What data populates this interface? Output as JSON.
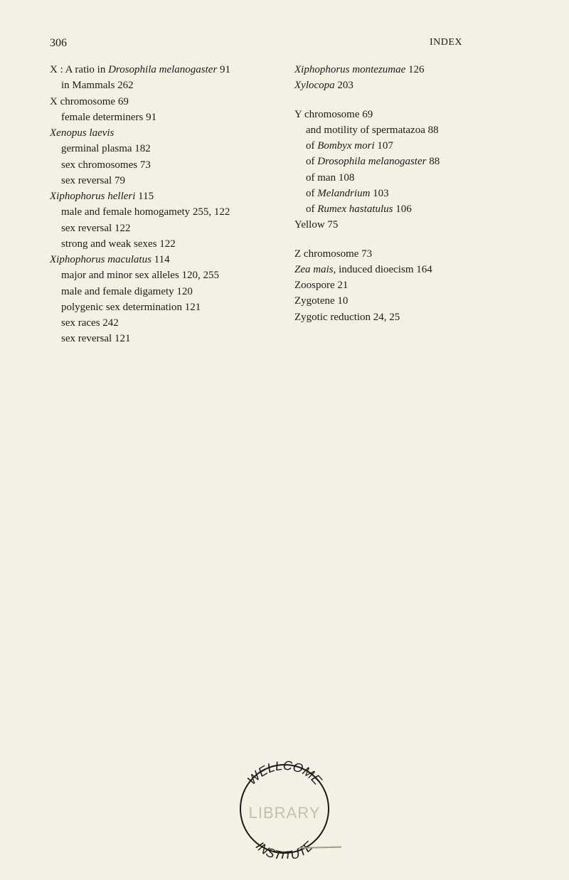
{
  "page_number": "306",
  "header_title": "INDEX",
  "left_column": [
    {
      "level": 0,
      "parts": [
        {
          "t": "X : A ratio in "
        },
        {
          "t": "Drosophila melanogaster",
          "i": true
        },
        {
          "t": "   91"
        }
      ]
    },
    {
      "level": 1,
      "parts": [
        {
          "t": "in Mammals   262"
        }
      ]
    },
    {
      "level": 0,
      "parts": [
        {
          "t": "X chromosome   69"
        }
      ]
    },
    {
      "level": 1,
      "parts": [
        {
          "t": "female determiners   91"
        }
      ]
    },
    {
      "level": 0,
      "parts": [
        {
          "t": "Xenopus laevis",
          "i": true
        }
      ]
    },
    {
      "level": 1,
      "parts": [
        {
          "t": "germinal plasma   182"
        }
      ]
    },
    {
      "level": 1,
      "parts": [
        {
          "t": "sex chromosomes   73"
        }
      ]
    },
    {
      "level": 1,
      "parts": [
        {
          "t": "sex reversal   79"
        }
      ]
    },
    {
      "level": 0,
      "parts": [
        {
          "t": "Xiphophorus helleri",
          "i": true
        },
        {
          "t": "   115"
        }
      ]
    },
    {
      "level": 1,
      "parts": [
        {
          "t": "male and female homogamety   255, 122"
        }
      ]
    },
    {
      "level": 1,
      "parts": [
        {
          "t": "sex reversal   122"
        }
      ]
    },
    {
      "level": 1,
      "parts": [
        {
          "t": "strong and weak sexes   122"
        }
      ]
    },
    {
      "level": 0,
      "parts": [
        {
          "t": "Xiphophorus maculatus",
          "i": true
        },
        {
          "t": "   114"
        }
      ]
    },
    {
      "level": 1,
      "parts": [
        {
          "t": "major and minor sex alleles   120, 255"
        }
      ]
    },
    {
      "level": 1,
      "parts": [
        {
          "t": "male and female digamety   120"
        }
      ]
    },
    {
      "level": 1,
      "parts": [
        {
          "t": "polygenic sex determination   121"
        }
      ]
    },
    {
      "level": 1,
      "parts": [
        {
          "t": "sex races   242"
        }
      ]
    },
    {
      "level": 1,
      "parts": [
        {
          "t": "sex reversal   121"
        }
      ]
    }
  ],
  "right_column": [
    {
      "level": 0,
      "parts": [
        {
          "t": "Xiphophorus montezumae",
          "i": true
        },
        {
          "t": "   126"
        }
      ]
    },
    {
      "level": 0,
      "parts": [
        {
          "t": "Xylocopa",
          "i": true
        },
        {
          "t": "   203"
        }
      ]
    },
    {
      "level": 0,
      "gap": true,
      "parts": [
        {
          "t": "Y chromosome   69"
        }
      ]
    },
    {
      "level": 1,
      "parts": [
        {
          "t": "and motility of spermatazoa   88"
        }
      ]
    },
    {
      "level": 1,
      "parts": [
        {
          "t": "of "
        },
        {
          "t": "Bombyx mori",
          "i": true
        },
        {
          "t": "   107"
        }
      ]
    },
    {
      "level": 1,
      "parts": [
        {
          "t": "of "
        },
        {
          "t": "Drosophila melanogaster",
          "i": true
        },
        {
          "t": "   88"
        }
      ]
    },
    {
      "level": 1,
      "parts": [
        {
          "t": "of man   108"
        }
      ]
    },
    {
      "level": 1,
      "parts": [
        {
          "t": "of "
        },
        {
          "t": "Melandrium",
          "i": true
        },
        {
          "t": "   103"
        }
      ]
    },
    {
      "level": 1,
      "parts": [
        {
          "t": "of "
        },
        {
          "t": "Rumex hastatulus",
          "i": true
        },
        {
          "t": "   106"
        }
      ]
    },
    {
      "level": 0,
      "parts": [
        {
          "t": "Yellow   75"
        }
      ]
    },
    {
      "level": 0,
      "gap": true,
      "parts": [
        {
          "t": "Z chromosome   73"
        }
      ]
    },
    {
      "level": 0,
      "parts": [
        {
          "t": "Zea mais",
          "i": true
        },
        {
          "t": ", induced dioecism   164"
        }
      ]
    },
    {
      "level": 0,
      "parts": [
        {
          "t": "Zoospore   21"
        }
      ]
    },
    {
      "level": 0,
      "parts": [
        {
          "t": "Zygotene   10"
        }
      ]
    },
    {
      "level": 0,
      "parts": [
        {
          "t": "Zygotic reduction   24, 25"
        }
      ]
    }
  ],
  "stamp": {
    "top_text": "WELLCOME",
    "middle_text": "LIBRARY",
    "bottom_text": "INSTITUTE"
  }
}
